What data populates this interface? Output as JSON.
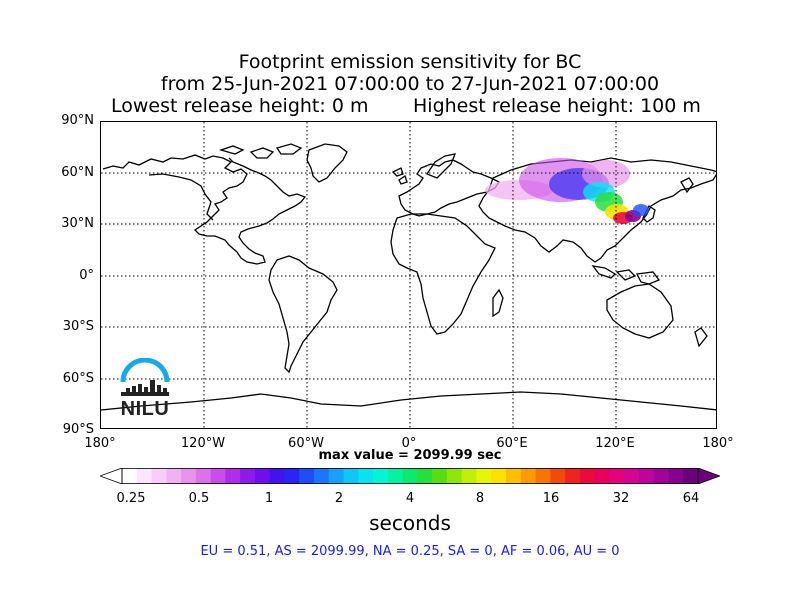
{
  "title": {
    "line1": "Footprint emission sensitivity for BC",
    "line2": "from 25-Jun-2021 07:00:00 to 27-Jun-2021 07:00:00",
    "lowest": "Lowest release height: 0 m",
    "highest": "Highest release height: 100 m"
  },
  "map": {
    "lat_ticks": [
      "90°N",
      "60°N",
      "30°N",
      "0°",
      "30°S",
      "60°S",
      "90°S"
    ],
    "lon_ticks": [
      "180°",
      "120°W",
      "60°W",
      "0°",
      "60°E",
      "120°E",
      "180°"
    ],
    "gridlines": true,
    "plume_region": "Asia",
    "logo_text": "NILU",
    "logo_icon": "nilu-logo-icon"
  },
  "max_value": "max value = 2099.99 sec",
  "colorbar": {
    "tick_labels": [
      "0.25",
      "0.5",
      "1",
      "2",
      "4",
      "8",
      "16",
      "32",
      "64"
    ],
    "units": "seconds",
    "colors": [
      "#ffffff",
      "#fde6fb",
      "#f8cdf6",
      "#f0b2f0",
      "#e894ec",
      "#dc72ea",
      "#c94de9",
      "#b02ee9",
      "#8f18ea",
      "#6d10ec",
      "#4412ee",
      "#2a25f0",
      "#1f4ef5",
      "#1a78f7",
      "#17a1f8",
      "#10c6f6",
      "#09e3ef",
      "#06f4d6",
      "#06f2a3",
      "#0ce870",
      "#2add3f",
      "#5bdc12",
      "#8fe60a",
      "#c1ef08",
      "#e8f504",
      "#fbe203",
      "#fdbf04",
      "#fb9b05",
      "#f67508",
      "#f04b0a",
      "#ec2520",
      "#ea0b3e",
      "#e8005c",
      "#e5027b",
      "#d40590",
      "#bc069a",
      "#a0049a",
      "#86028e",
      "#6a0178"
    ]
  },
  "region_stats": "EU = 0.51,  AS = 2099.99,  NA = 0.25,  SA = 0,  AF = 0.06,  AU = 0"
}
